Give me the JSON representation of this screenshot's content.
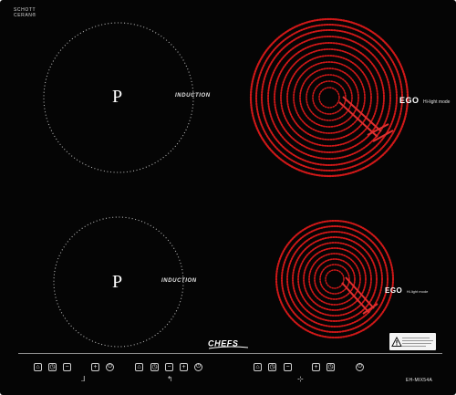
{
  "brand": {
    "line1": "SCHOTT",
    "line2": "CERAN®"
  },
  "zones": {
    "top_left": {
      "mark": "P",
      "label": "INDUCTION"
    },
    "bottom_left": {
      "mark": "P",
      "label": "INDUCTION"
    },
    "top_right": {
      "ego": "EGO",
      "ego_sub": "Hi-light mode"
    },
    "bottom_right": {
      "ego": "EGO",
      "ego_sub": "Hi-light mode"
    }
  },
  "logo": "CHEFS",
  "model": "EH-MIX54A",
  "colors": {
    "glass": "#050505",
    "heating_element": "#d01818",
    "dotted_ring": "#b8b8b8",
    "controls": "#cfcfcf"
  },
  "controls": {
    "group1": [
      "lock-icon",
      "timer-icon",
      "minus-icon",
      "plus-icon",
      "power-icon"
    ],
    "group2": [
      "lock-icon",
      "timer-icon",
      "minus-icon",
      "plus-icon",
      "power-icon"
    ],
    "group3": [
      "lock-icon",
      "timer-icon",
      "minus-icon",
      "plus-icon",
      "power-icon"
    ]
  }
}
